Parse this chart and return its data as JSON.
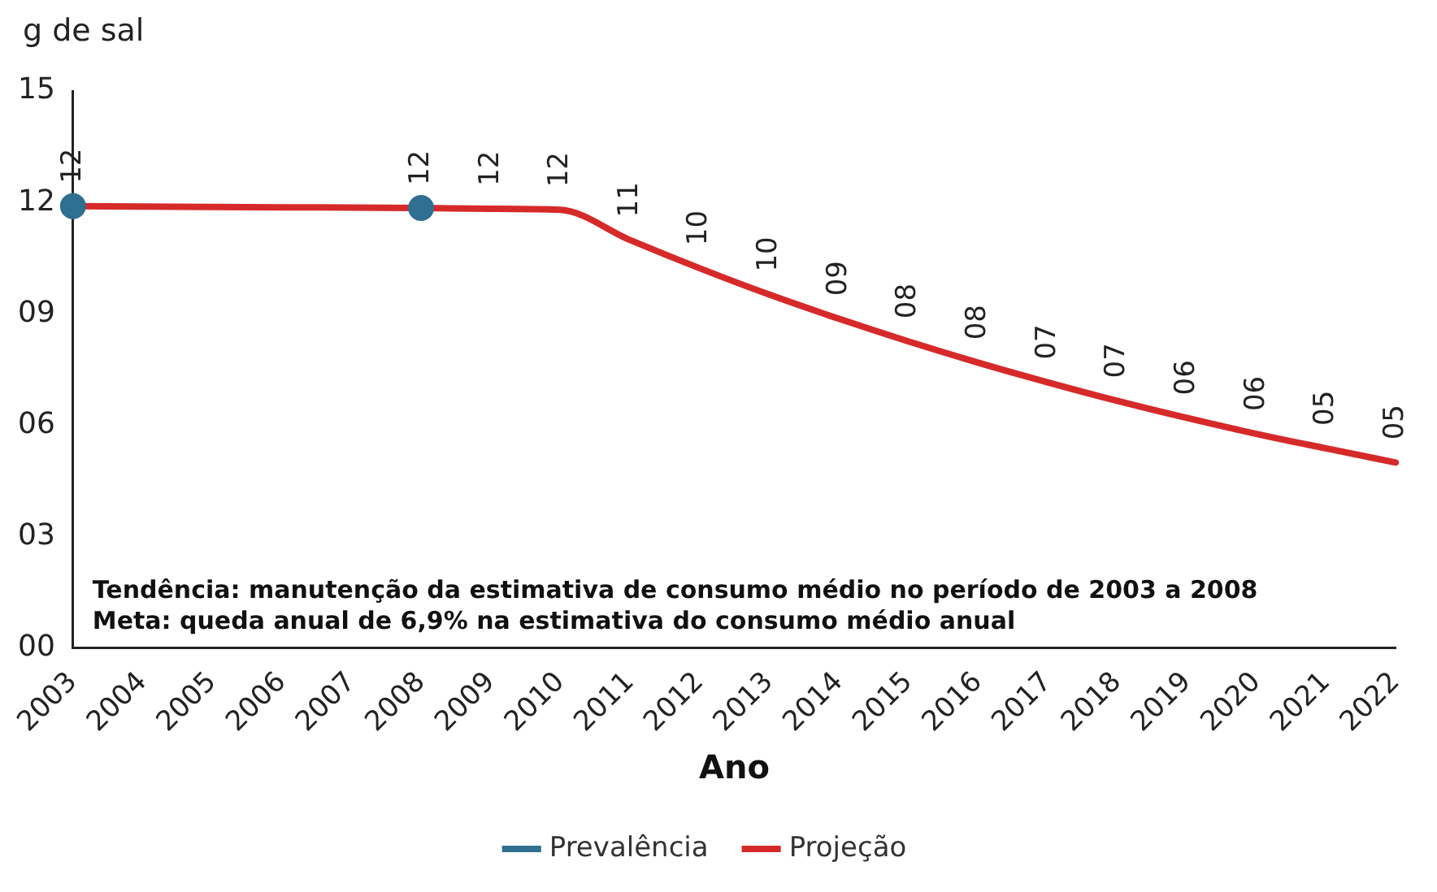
{
  "chart_data": {
    "type": "line",
    "ylabel": "g de sal",
    "xlabel": "Ano",
    "categories": [
      "2003",
      "2004",
      "2005",
      "2006",
      "2007",
      "2008",
      "2009",
      "2010",
      "2011",
      "2012",
      "2013",
      "2014",
      "2015",
      "2016",
      "2017",
      "2018",
      "2019",
      "2020",
      "2021",
      "2022"
    ],
    "series": [
      {
        "name": "Prevalência",
        "type": "scatter",
        "color": "#2f6f8f",
        "marker": "circle",
        "values": [
          11.9,
          null,
          null,
          null,
          null,
          11.85,
          null,
          null,
          null,
          null,
          null,
          null,
          null,
          null,
          null,
          null,
          null,
          null,
          null,
          null
        ]
      },
      {
        "name": "Projeção",
        "color": "#d62a2a",
        "marker": "none",
        "values": [
          11.9,
          11.89,
          11.88,
          11.87,
          11.86,
          11.85,
          11.83,
          11.8,
          10.99,
          10.23,
          9.52,
          8.87,
          8.26,
          7.69,
          7.16,
          6.66,
          6.2,
          5.77,
          5.38,
          5.0
        ],
        "value_labels": [
          "12",
          null,
          null,
          null,
          null,
          "12",
          "12",
          "12",
          "11",
          "10",
          "10",
          "09",
          "08",
          "08",
          "07",
          "07",
          "06",
          "06",
          "05",
          "05"
        ]
      }
    ],
    "ylim": [
      0,
      15
    ],
    "yticks": [
      {
        "value": 0,
        "label": "00"
      },
      {
        "value": 3,
        "label": "03"
      },
      {
        "value": 6,
        "label": "06"
      },
      {
        "value": 9,
        "label": "09"
      },
      {
        "value": 12,
        "label": "12"
      },
      {
        "value": 15,
        "label": "15"
      }
    ],
    "grid": false,
    "legend": "bottom",
    "line_style": "solid",
    "annotations": [
      "Tendência: manutenção da estimativa de consumo médio no período de 2003 a 2008",
      "Meta: queda anual de 6,9% na estimativa do consumo médio anual"
    ]
  }
}
